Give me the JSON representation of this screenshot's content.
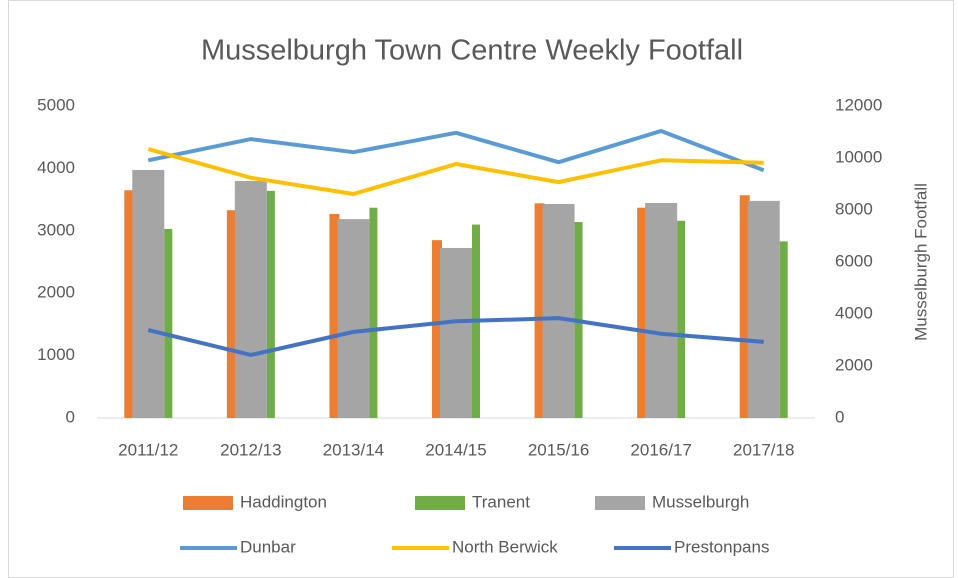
{
  "chart_data": {
    "type": "combo",
    "title": "Musselburgh Town Centre Weekly Footfall",
    "y2label": "Musselburgh Footfall",
    "categories": [
      "2011/12",
      "2012/13",
      "2013/14",
      "2014/15",
      "2015/16",
      "2016/17",
      "2017/18"
    ],
    "ylim": [
      0,
      5000
    ],
    "yticks": [
      0,
      1000,
      2000,
      3000,
      4000,
      5000
    ],
    "y2lim": [
      0,
      12000
    ],
    "y2ticks": [
      0,
      2000,
      4000,
      6000,
      8000,
      10000,
      12000
    ],
    "grid": false,
    "legend": "bottom",
    "series": [
      {
        "name": "Haddington",
        "type": "bar",
        "color": "#ED7D31",
        "values": [
          3650,
          3330,
          3270,
          2850,
          3440,
          3370,
          3570
        ]
      },
      {
        "name": "Tranent",
        "type": "bar",
        "color": "#70AD47",
        "values": [
          3030,
          3640,
          3370,
          3100,
          3140,
          3160,
          2830
        ]
      },
      {
        "name": "Musselburgh",
        "type": "bar",
        "axis": "y2",
        "color": "#A5A5A5",
        "values": [
          9540,
          9115,
          7650,
          6540,
          8230,
          8270,
          8350
        ]
      },
      {
        "name": "Dunbar",
        "type": "line",
        "color": "#5B9BD5",
        "values": [
          4130,
          4470,
          4260,
          4570,
          4100,
          4600,
          3970
        ]
      },
      {
        "name": "North Berwick",
        "type": "line",
        "color": "#FFC000",
        "values": [
          4310,
          3850,
          3590,
          4070,
          3780,
          4130,
          4090
        ]
      },
      {
        "name": "Prestonpans",
        "type": "line",
        "color": "#4472C4",
        "values": [
          1410,
          1010,
          1380,
          1550,
          1600,
          1350,
          1220
        ]
      }
    ]
  }
}
